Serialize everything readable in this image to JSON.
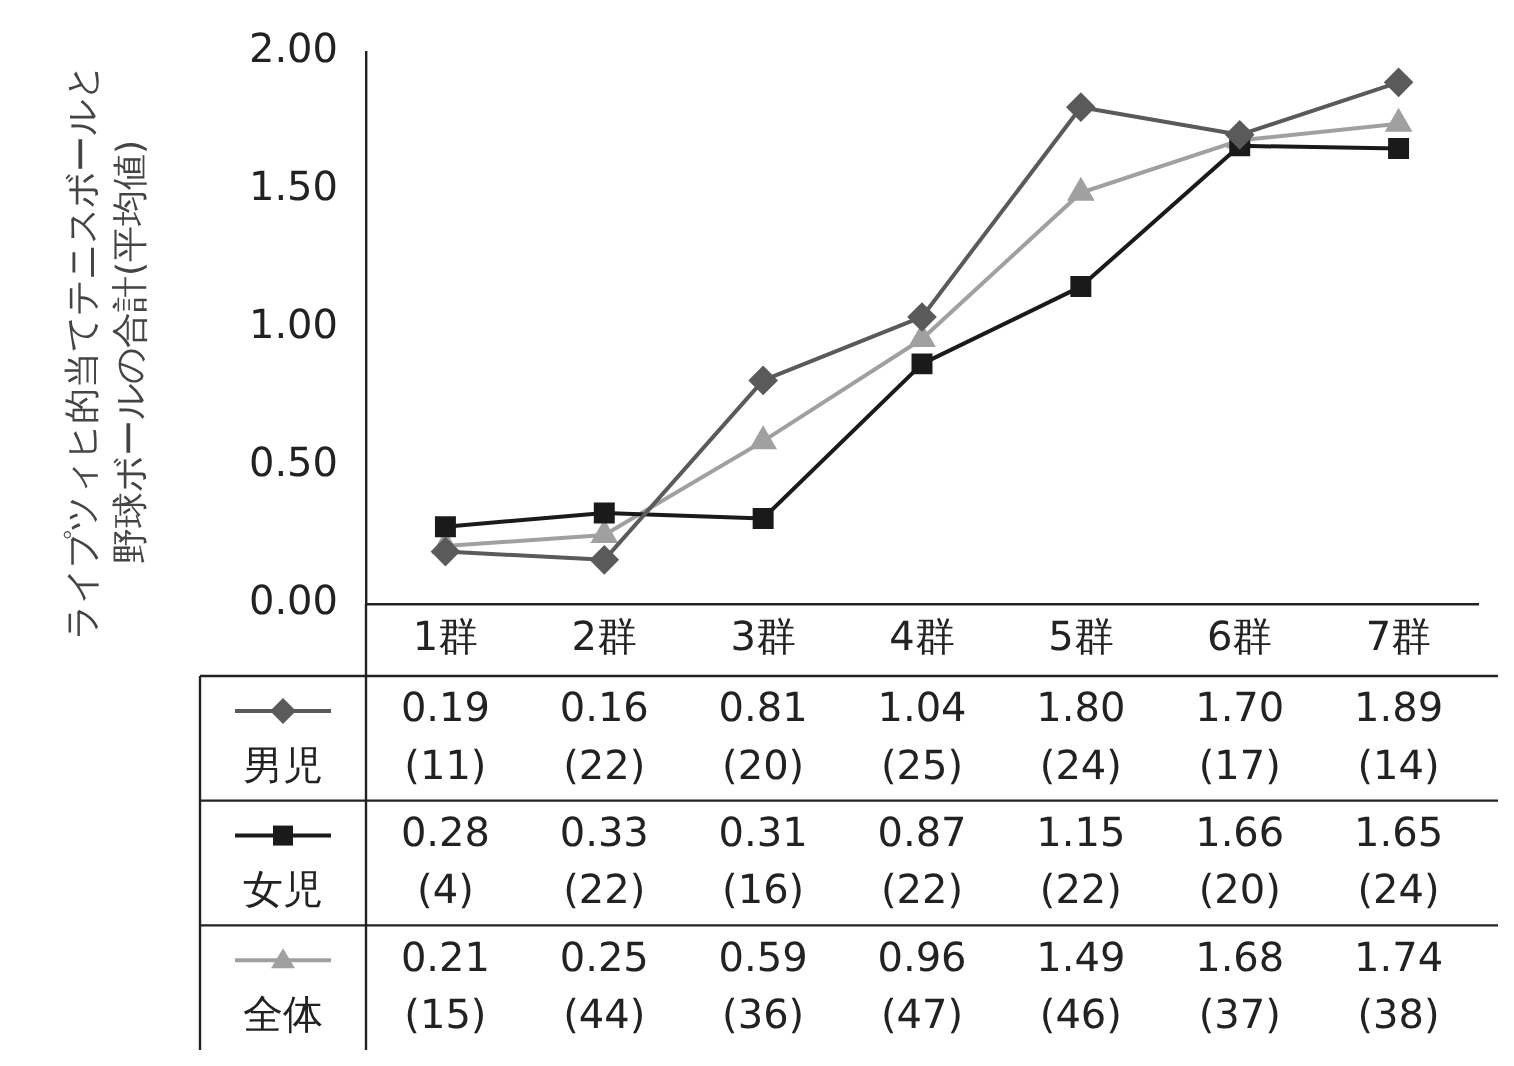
{
  "chart_data": {
    "type": "line",
    "ylabel": "ライプツィヒ的当てテニスボールと野球ボールの合計(平均値)",
    "categories": [
      "1群",
      "2群",
      "3群",
      "4群",
      "5群",
      "6群",
      "7群"
    ],
    "series": [
      {
        "name": "男児",
        "color": "#5a5a5a",
        "marker": "diamond",
        "values": [
          0.19,
          0.16,
          0.81,
          1.04,
          1.8,
          1.7,
          1.89
        ],
        "value_labels": [
          "0.19",
          "0.16",
          "0.81",
          "1.04",
          "1.80",
          "1.70",
          "1.89"
        ]
      },
      {
        "name": "女児",
        "color": "#1a1a1a",
        "marker": "square",
        "values": [
          0.28,
          0.33,
          0.31,
          0.87,
          1.15,
          1.66,
          1.65
        ],
        "value_labels": [
          "0.28",
          "0.33",
          "0.31",
          "0.87",
          "1.15",
          "1.66",
          "1.65"
        ]
      },
      {
        "name": "全体",
        "color": "#a0a0a0",
        "marker": "triangle",
        "values": [
          0.21,
          0.25,
          0.59,
          0.96,
          1.49,
          1.68,
          1.74
        ],
        "value_labels": [
          "0.21",
          "0.25",
          "0.59",
          "0.96",
          "1.49",
          "1.68",
          "1.74"
        ]
      }
    ],
    "annotations": [
      "(11)",
      "(22)",
      "(20)",
      "(25)",
      "(24)",
      "(17)",
      "(14)",
      "(4)",
      "(22)",
      "(16)",
      "(22)",
      "(22)",
      "(20)",
      "(24)",
      "(15)",
      "(44)",
      "(36)",
      "(47)",
      "(46)",
      "(37)",
      "(38)"
    ],
    "ylim": [
      0,
      2
    ],
    "yticks": [
      {
        "value": 0,
        "label": "0.00"
      },
      {
        "value": 0.5,
        "label": "0.50"
      },
      {
        "value": 1,
        "label": "1.00"
      },
      {
        "value": 1.5,
        "label": "1.50"
      },
      {
        "value": 2,
        "label": "2.00"
      }
    ],
    "grid": false,
    "legend": "bottom",
    "line_style": "solid"
  }
}
